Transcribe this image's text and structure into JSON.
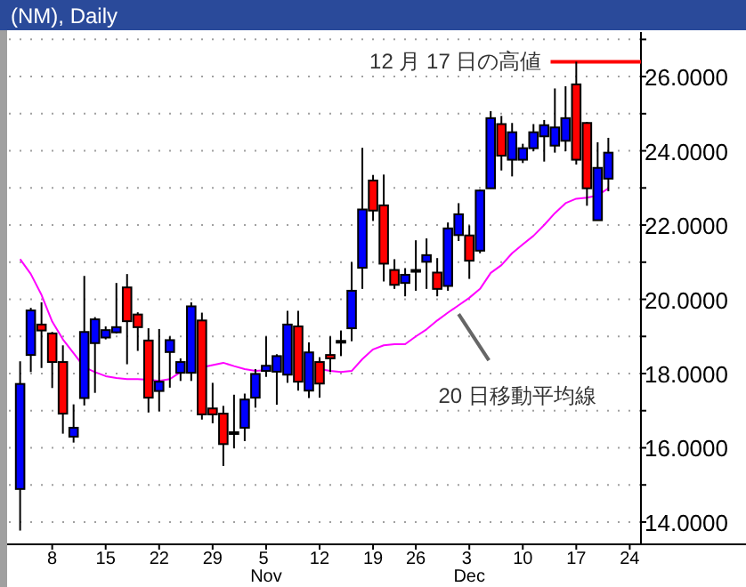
{
  "chart_data": {
    "type": "candlestick",
    "title": "(NM), Daily",
    "categories": [
      null,
      null,
      null,
      "8",
      null,
      null,
      null,
      null,
      "15",
      null,
      null,
      null,
      null,
      "22",
      null,
      null,
      null,
      null,
      "29",
      null,
      null,
      null,
      null,
      "5 Nov",
      null,
      null,
      null,
      null,
      "12",
      null,
      null,
      null,
      null,
      "19",
      null,
      null,
      null,
      "26",
      null,
      null,
      null,
      null,
      "3 Dec",
      null,
      null,
      null,
      null,
      "10",
      null,
      null,
      null,
      null,
      "17",
      null,
      null,
      null,
      null,
      "24"
    ],
    "ohlc": [
      [
        14.89,
        18.33,
        13.77,
        17.72
      ],
      [
        18.5,
        19.77,
        18.04,
        19.7
      ],
      [
        19.32,
        19.92,
        18.15,
        19.16
      ],
      [
        19.08,
        19.12,
        17.61,
        18.31
      ],
      [
        18.31,
        18.76,
        16.38,
        16.92
      ],
      [
        16.3,
        17.17,
        16.14,
        16.54
      ],
      [
        17.34,
        20.63,
        17.14,
        19.12
      ],
      [
        18.82,
        19.52,
        17.48,
        19.46
      ],
      [
        18.97,
        19.27,
        18.92,
        19.17
      ],
      [
        19.11,
        20.44,
        19.08,
        19.25
      ],
      [
        20.32,
        20.68,
        18.25,
        19.41
      ],
      [
        19.59,
        19.65,
        18.61,
        19.25
      ],
      [
        18.89,
        19.22,
        16.95,
        17.35
      ],
      [
        17.53,
        19.2,
        16.98,
        17.78
      ],
      [
        18.58,
        19.0,
        17.62,
        18.9
      ],
      [
        18.02,
        18.41,
        17.8,
        18.31
      ],
      [
        18.02,
        19.92,
        17.8,
        19.81
      ],
      [
        19.43,
        19.64,
        16.76,
        16.9
      ],
      [
        17.06,
        17.75,
        16.66,
        16.9
      ],
      [
        16.92,
        17.13,
        15.51,
        16.1
      ],
      [
        16.4,
        17.43,
        15.99,
        16.42
      ],
      [
        16.54,
        17.46,
        16.18,
        17.3
      ],
      [
        17.35,
        18.12,
        17.08,
        17.99
      ],
      [
        18.07,
        19.0,
        17.91,
        18.21
      ],
      [
        18.05,
        18.52,
        17.16,
        18.47
      ],
      [
        17.97,
        19.69,
        17.75,
        19.32
      ],
      [
        19.27,
        19.69,
        17.54,
        17.78
      ],
      [
        17.54,
        18.84,
        17.34,
        18.57
      ],
      [
        18.31,
        18.44,
        17.35,
        17.73
      ],
      [
        18.5,
        19.0,
        18.04,
        18.41
      ],
      [
        18.86,
        19.16,
        18.47,
        18.88
      ],
      [
        19.22,
        21.0,
        18.87,
        20.23
      ],
      [
        20.85,
        24.08,
        20.28,
        22.42
      ],
      [
        23.2,
        23.35,
        22.11,
        22.39
      ],
      [
        22.53,
        23.36,
        20.48,
        20.96
      ],
      [
        20.79,
        21.08,
        20.28,
        20.39
      ],
      [
        20.44,
        20.84,
        20.08,
        20.66
      ],
      [
        20.77,
        21.59,
        20.23,
        20.79
      ],
      [
        21.01,
        21.64,
        20.28,
        21.19
      ],
      [
        20.72,
        21.11,
        20.08,
        20.28
      ],
      [
        20.36,
        22.07,
        20.23,
        21.91
      ],
      [
        21.73,
        22.59,
        21.57,
        22.29
      ],
      [
        21.72,
        21.99,
        20.55,
        21.04
      ],
      [
        21.31,
        22.96,
        21.24,
        22.93
      ],
      [
        22.99,
        25.07,
        22.99,
        24.88
      ],
      [
        24.72,
        24.94,
        23.47,
        23.87
      ],
      [
        23.76,
        24.75,
        23.31,
        24.5
      ],
      [
        23.76,
        24.19,
        23.67,
        24.07
      ],
      [
        24.07,
        24.72,
        23.99,
        24.5
      ],
      [
        24.39,
        24.83,
        23.71,
        24.69
      ],
      [
        24.14,
        25.68,
        23.95,
        24.63
      ],
      [
        24.27,
        25.74,
        23.99,
        24.88
      ],
      [
        25.79,
        26.4,
        23.63,
        23.76
      ],
      [
        24.75,
        24.78,
        22.52,
        22.99
      ],
      [
        22.13,
        24.23,
        22.13,
        23.54
      ],
      [
        23.25,
        24.35,
        22.91,
        23.95
      ],
      null,
      null
    ],
    "colors": [
      "#0000ff",
      "#0000ff",
      "#ff0000",
      "#ff0000",
      "#ff0000",
      "#0000ff",
      "#0000ff",
      "#0000ff",
      "#0000ff",
      "#0000ff",
      "#ff0000",
      "#ff0000",
      "#ff0000",
      "#0000ff",
      "#0000ff",
      "#0000ff",
      "#0000ff",
      "#ff0000",
      "#ff0000",
      "#ff0000",
      "#000000",
      "#0000ff",
      "#0000ff",
      "#0000ff",
      "#0000ff",
      "#0000ff",
      "#ff0000",
      "#0000ff",
      "#ff0000",
      "#ff0000",
      "#000000",
      "#0000ff",
      "#0000ff",
      "#ff0000",
      "#ff0000",
      "#ff0000",
      "#0000ff",
      "#000000",
      "#0000ff",
      "#ff0000",
      "#0000ff",
      "#0000ff",
      "#ff0000",
      "#0000ff",
      "#0000ff",
      "#ff0000",
      "#0000ff",
      "#0000ff",
      "#0000ff",
      "#0000ff",
      "#0000ff",
      "#0000ff",
      "#ff0000",
      "#ff0000",
      "#0000ff",
      "#0000ff",
      null,
      null
    ],
    "series": [
      {
        "name": "20 日移動平均線",
        "type": "line",
        "color": "#ff00ff",
        "values": [
          21.08,
          20.68,
          20.12,
          19.4,
          18.92,
          18.55,
          18.17,
          18.04,
          17.93,
          17.88,
          17.85,
          17.85,
          17.83,
          17.8,
          17.85,
          18.04,
          null,
          18.17,
          18.23,
          18.29,
          18.2,
          18.12,
          18.07,
          18.09,
          null,
          null,
          null,
          null,
          18.12,
          18.07,
          18.04,
          18.07,
          18.39,
          18.65,
          18.76,
          18.79,
          18.79,
          19.0,
          19.19,
          19.43,
          19.64,
          19.84,
          20.04,
          20.28,
          20.71,
          20.92,
          21.24,
          21.48,
          21.71,
          22.0,
          22.32,
          22.59,
          22.71,
          22.74,
          22.8,
          22.99,
          null,
          null
        ]
      }
    ],
    "ylim": [
      13.4,
      27.2
    ],
    "yticks": [
      {
        "value": 14,
        "label": "14.0000"
      },
      {
        "value": 15,
        "label": null
      },
      {
        "value": 16,
        "label": "16.0000"
      },
      {
        "value": 17,
        "label": null
      },
      {
        "value": 18,
        "label": "18.0000"
      },
      {
        "value": 19,
        "label": null
      },
      {
        "value": 20,
        "label": "20.0000"
      },
      {
        "value": 21,
        "label": null
      },
      {
        "value": 22,
        "label": "22.0000"
      },
      {
        "value": 23,
        "label": null
      },
      {
        "value": 24,
        "label": "24.0000"
      },
      {
        "value": 25,
        "label": null
      },
      {
        "value": 26,
        "label": "26.0000"
      },
      {
        "value": 27,
        "label": null
      }
    ],
    "grid": "y",
    "ref_lines": [
      {
        "axis": "y",
        "value": 26.4,
        "label": "12 月 17 日の高値",
        "color": "#ff0000"
      }
    ]
  }
}
